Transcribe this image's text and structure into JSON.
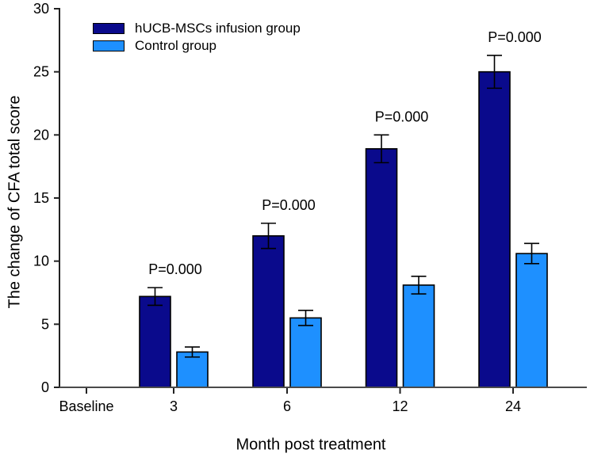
{
  "chart_data": {
    "type": "bar",
    "xlabel": "Month post treatment",
    "ylabel": "The change of CFA total score",
    "categories": [
      "Baseline",
      "3",
      "6",
      "12",
      "24"
    ],
    "series": [
      {
        "name": "hUCB-MSCs infusion group",
        "color": "#0A0A8C",
        "values": [
          null,
          7.2,
          12.0,
          18.9,
          25.0
        ],
        "errors": [
          null,
          0.7,
          1.0,
          1.1,
          1.3
        ]
      },
      {
        "name": "Control group",
        "color": "#1E90FF",
        "values": [
          null,
          2.8,
          5.5,
          8.1,
          10.6
        ],
        "errors": [
          null,
          0.4,
          0.6,
          0.7,
          0.8
        ]
      }
    ],
    "annotations": [
      {
        "category": "3",
        "label": "P=0.000"
      },
      {
        "category": "6",
        "label": "P=0.000"
      },
      {
        "category": "12",
        "label": "P=0.000"
      },
      {
        "category": "24",
        "label": "P=0.000"
      }
    ],
    "ylim": [
      0,
      30
    ],
    "ytick_step": 5,
    "grid": false,
    "legend_position": "top-left-inside",
    "error_bar_color": "#000000",
    "bar_border_color": "#000000",
    "axis_color": "#333333"
  }
}
